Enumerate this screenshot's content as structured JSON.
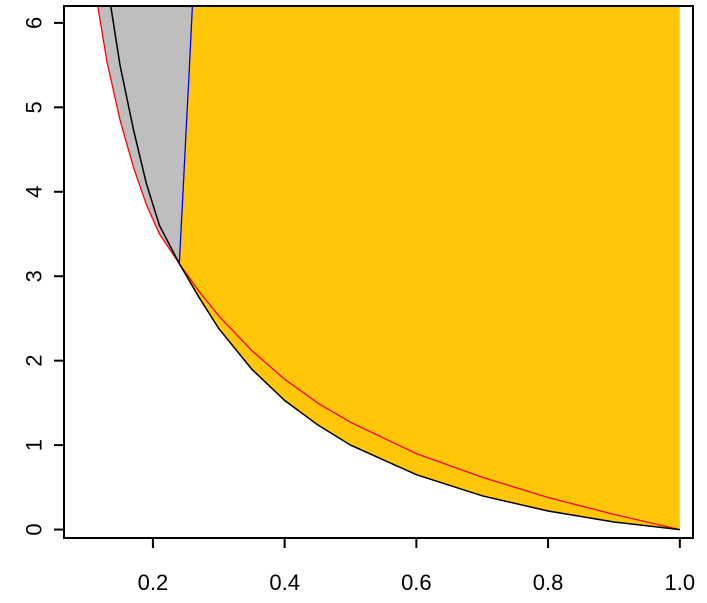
{
  "chart_data": {
    "type": "area",
    "title": "",
    "xlabel": "",
    "ylabel": "",
    "xlim": [
      0.065,
      1.02
    ],
    "ylim": [
      -0.1,
      6.2
    ],
    "x_ticks": [
      {
        "value": 0.2,
        "label": "0.2"
      },
      {
        "value": 0.4,
        "label": "0.4"
      },
      {
        "value": 0.6,
        "label": "0.6"
      },
      {
        "value": 0.8,
        "label": "0.8"
      },
      {
        "value": 1.0,
        "label": "1.0"
      }
    ],
    "y_ticks": [
      {
        "value": 0,
        "label": "0"
      },
      {
        "value": 1,
        "label": "1"
      },
      {
        "value": 2,
        "label": "2"
      },
      {
        "value": 3,
        "label": "3"
      },
      {
        "value": 4,
        "label": "4"
      },
      {
        "value": 5,
        "label": "5"
      },
      {
        "value": 6,
        "label": "6"
      }
    ],
    "grid": false,
    "legend": "none",
    "intersection": {
      "x": 0.24,
      "y": 3.15
    },
    "black_curve": {
      "x": [
        0.13,
        0.15,
        0.17,
        0.19,
        0.21,
        0.24,
        0.27,
        0.3,
        0.35,
        0.4,
        0.45,
        0.5,
        0.6,
        0.7,
        0.8,
        0.9,
        1.0
      ],
      "y": [
        6.5,
        5.5,
        4.75,
        4.1,
        3.6,
        3.15,
        2.75,
        2.38,
        1.9,
        1.53,
        1.24,
        1.0,
        0.65,
        0.4,
        0.22,
        0.09,
        0.0
      ]
    },
    "red_curve": {
      "x": [
        0.11,
        0.13,
        0.15,
        0.17,
        0.19,
        0.21,
        0.24,
        0.27,
        0.3,
        0.35,
        0.4,
        0.45,
        0.5,
        0.6,
        0.7,
        0.8,
        0.9,
        1.0
      ],
      "y": [
        6.5,
        5.55,
        4.85,
        4.3,
        3.85,
        3.5,
        3.15,
        2.82,
        2.53,
        2.12,
        1.78,
        1.5,
        1.27,
        0.9,
        0.62,
        0.38,
        0.18,
        0.0
      ]
    },
    "blue_curve": {
      "x": [
        0.24,
        0.245,
        0.25,
        0.255,
        0.26
      ],
      "y": [
        3.15,
        3.9,
        4.65,
        5.4,
        6.2
      ]
    },
    "colors": {
      "red": "#ff0000",
      "black": "#000000",
      "blue": "#0000ff",
      "orange_fill": "#ffc60a",
      "gray_fill": "#bebebe",
      "axis": "#000000"
    }
  }
}
